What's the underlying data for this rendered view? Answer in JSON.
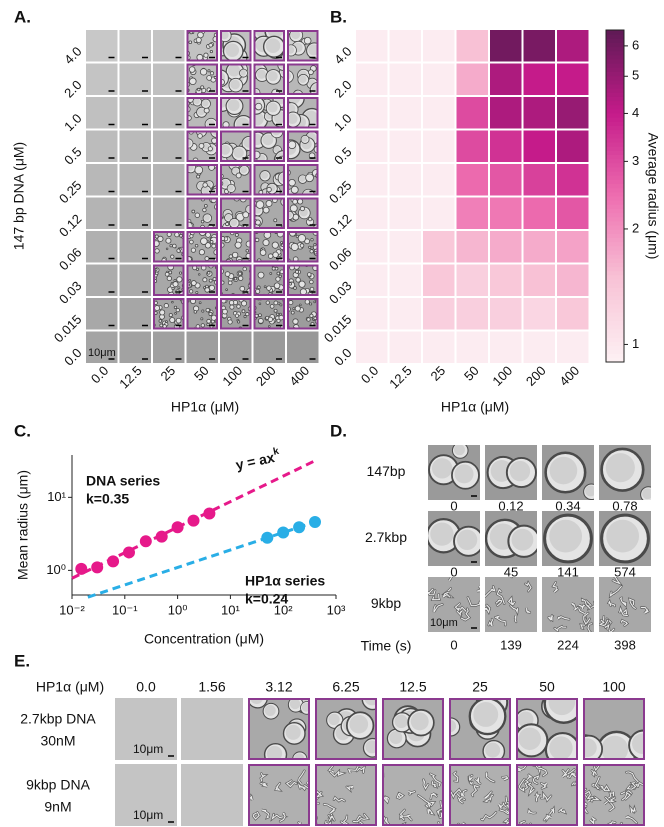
{
  "panel_a": {
    "label": "A.",
    "y_title": "147 bp DNA (μM)",
    "x_title": "HP1α (μM)",
    "rows": [
      "4.0",
      "2.0",
      "1.0",
      "0.5",
      "0.25",
      "0.12",
      "0.06",
      "0.03",
      "0.015",
      "0.0"
    ],
    "columns": [
      "0.0",
      "12.5",
      "25",
      "50",
      "100",
      "200",
      "400"
    ],
    "outlined": [
      [
        false,
        false,
        false,
        true,
        true,
        true,
        true
      ],
      [
        false,
        false,
        false,
        true,
        true,
        true,
        true
      ],
      [
        false,
        false,
        false,
        true,
        true,
        true,
        true
      ],
      [
        false,
        false,
        false,
        true,
        true,
        true,
        true
      ],
      [
        false,
        false,
        false,
        true,
        true,
        true,
        true
      ],
      [
        false,
        false,
        false,
        true,
        true,
        true,
        true
      ],
      [
        false,
        false,
        true,
        true,
        true,
        true,
        true
      ],
      [
        false,
        false,
        true,
        true,
        true,
        true,
        true
      ],
      [
        false,
        false,
        true,
        true,
        true,
        true,
        true
      ],
      [
        false,
        false,
        false,
        false,
        false,
        false,
        false
      ]
    ],
    "scale_bar": "10μm"
  },
  "chart_data": [
    {
      "type": "heatmap",
      "label": "B.",
      "x_label": "HP1α (μM)",
      "categories": [
        "0.0",
        "12.5",
        "25",
        "50",
        "100",
        "200",
        "400"
      ],
      "y_categories": [
        "4.0",
        "2.0",
        "1.0",
        "0.5",
        "0.25",
        "0.12",
        "0.06",
        "0.03",
        "0.015",
        "0.0"
      ],
      "values": [
        [
          0.95,
          0.95,
          0.95,
          1.5,
          6.0,
          5.8,
          4.5
        ],
        [
          0.95,
          0.95,
          0.95,
          1.7,
          4.5,
          4.0,
          4.0
        ],
        [
          0.95,
          0.95,
          0.95,
          3.0,
          4.5,
          4.5,
          5.0
        ],
        [
          0.95,
          0.95,
          0.95,
          3.0,
          3.5,
          4.0,
          4.5
        ],
        [
          0.95,
          0.95,
          0.95,
          2.5,
          2.8,
          3.2,
          3.5
        ],
        [
          0.95,
          0.95,
          0.95,
          2.2,
          2.3,
          2.5,
          2.8
        ],
        [
          0.95,
          0.95,
          1.4,
          1.6,
          1.7,
          1.7,
          1.8
        ],
        [
          0.95,
          0.95,
          1.4,
          1.3,
          1.4,
          1.5,
          1.6
        ],
        [
          0.95,
          0.95,
          1.3,
          1.3,
          1.3,
          1.2,
          1.4
        ],
        [
          0.95,
          0.95,
          0.95,
          0.95,
          0.95,
          0.95,
          0.95
        ]
      ],
      "colorbar": {
        "label": "Average radius (μm)",
        "lim": [
          0.9,
          6.6
        ],
        "ticks": [
          1,
          2,
          3,
          4,
          5,
          6
        ],
        "log": true,
        "colors": [
          "#fdf1f4",
          "#f8c3d6",
          "#ee6eb0",
          "#c51b8a",
          "#5e1a55"
        ]
      }
    },
    {
      "type": "scatter",
      "label": "C.",
      "x_label": "Concentration (μM)",
      "y_label": "Mean radius (μm)",
      "log_x": true,
      "log_y": true,
      "xlim": [
        0.01,
        1000
      ],
      "ylim": [
        0.46,
        38
      ],
      "xticks": [
        {
          "value": 0.01,
          "label": "10⁻²"
        },
        {
          "value": 0.1,
          "label": "10⁻¹"
        },
        {
          "value": 1,
          "label": "10⁰"
        },
        {
          "value": 10,
          "label": "10¹"
        },
        {
          "value": 100,
          "label": "10²"
        },
        {
          "value": 1000,
          "label": "10³"
        }
      ],
      "yticks": [
        {
          "value": 1,
          "label": "10⁰"
        },
        {
          "value": 10,
          "label": "10¹"
        }
      ],
      "series": [
        {
          "name": "DNA series",
          "annotation": "k=0.35",
          "color": "#e6198a",
          "x": [
            0.015,
            0.03,
            0.06,
            0.12,
            0.25,
            0.5,
            1,
            2,
            4
          ],
          "values": [
            1.05,
            1.1,
            1.33,
            1.76,
            2.5,
            2.9,
            3.9,
            4.8,
            6.0
          ]
        },
        {
          "name": "HP1α series",
          "annotation": "k=0.24",
          "color": "#29aee6",
          "x": [
            50,
            100,
            200,
            400
          ],
          "values": [
            2.8,
            3.3,
            3.9,
            4.6
          ]
        }
      ],
      "fit_lines": [
        {
          "color": "#e6198a",
          "x": [
            0.01,
            400
          ],
          "values": [
            0.78,
            31.7
          ]
        },
        {
          "color": "#29aee6",
          "x": [
            0.02,
            400
          ],
          "values": [
            0.43,
            4.6
          ]
        }
      ],
      "equation": {
        "text": "y = ax",
        "exponent": "k"
      }
    }
  ],
  "panel_d": {
    "label": "D.",
    "rows": [
      {
        "name": "147bp",
        "times": [
          0,
          0.12,
          0.34,
          0.78
        ]
      },
      {
        "name": "2.7kbp",
        "times": [
          0,
          45,
          141,
          574
        ]
      },
      {
        "name": "9kbp",
        "times": [
          0,
          139,
          224,
          398
        ]
      }
    ],
    "time_label": "Time (s)",
    "scale_bar": "10μm"
  },
  "panel_e": {
    "label": "E.",
    "header": "HP1α (μM)",
    "concentrations": [
      "0.0",
      "1.56",
      "3.12",
      "6.25",
      "12.5",
      "25",
      "50",
      "100"
    ],
    "outlined": [
      false,
      false,
      true,
      true,
      true,
      true,
      true,
      true
    ],
    "rows": [
      {
        "lines": [
          "2.7kbp DNA",
          "30nM"
        ],
        "scale_bar": "10μm"
      },
      {
        "lines": [
          "9kbp DNA",
          "9nM"
        ],
        "scale_bar": "10μm"
      }
    ]
  }
}
